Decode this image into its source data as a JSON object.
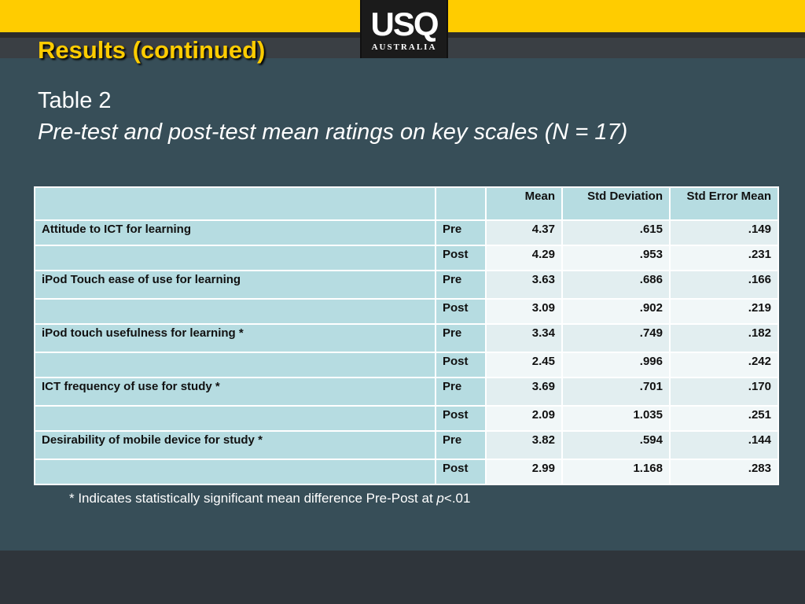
{
  "header": {
    "logo_main": "USQ",
    "logo_sub": "AUSTRALIA",
    "title": "Results (continued)"
  },
  "table_label": "Table 2",
  "table_caption": "Pre-test and post-test mean ratings on key scales (N = 17)",
  "table": {
    "columns": [
      "",
      "",
      "Mean",
      "Std Deviation",
      "Std Error Mean"
    ],
    "rows": [
      {
        "scale": "Attitude to ICT for learning",
        "phase": "Pre",
        "mean": "4.37",
        "sd": ".615",
        "se": ".149"
      },
      {
        "scale": "",
        "phase": "Post",
        "mean": "4.29",
        "sd": ".953",
        "se": ".231"
      },
      {
        "scale": "iPod Touch ease of use for learning",
        "phase": "Pre",
        "mean": "3.63",
        "sd": ".686",
        "se": ".166"
      },
      {
        "scale": "",
        "phase": "Post",
        "mean": "3.09",
        "sd": ".902",
        "se": ".219"
      },
      {
        "scale": "iPod touch usefulness for learning *",
        "phase": "Pre",
        "mean": "3.34",
        "sd": ".749",
        "se": ".182"
      },
      {
        "scale": "",
        "phase": "Post",
        "mean": "2.45",
        "sd": ".996",
        "se": ".242"
      },
      {
        "scale": "ICT frequency of use for study *",
        "phase": "Pre",
        "mean": "3.69",
        "sd": ".701",
        "se": ".170"
      },
      {
        "scale": "",
        "phase": "Post",
        "mean": "2.09",
        "sd": "1.035",
        "se": ".251"
      },
      {
        "scale": "Desirability of mobile device for study *",
        "phase": "Pre",
        "mean": "3.82",
        "sd": ".594",
        "se": ".144"
      },
      {
        "scale": "",
        "phase": "Post",
        "mean": "2.99",
        "sd": "1.168",
        "se": ".283"
      }
    ]
  },
  "footnote": {
    "text": "* Indicates statistically significant mean difference Pre-Post at ",
    "p": "p",
    "value": "<.01"
  },
  "colors": {
    "accent": "#ffcc00",
    "background": "#374e58",
    "table_header": "#b6dce1"
  }
}
